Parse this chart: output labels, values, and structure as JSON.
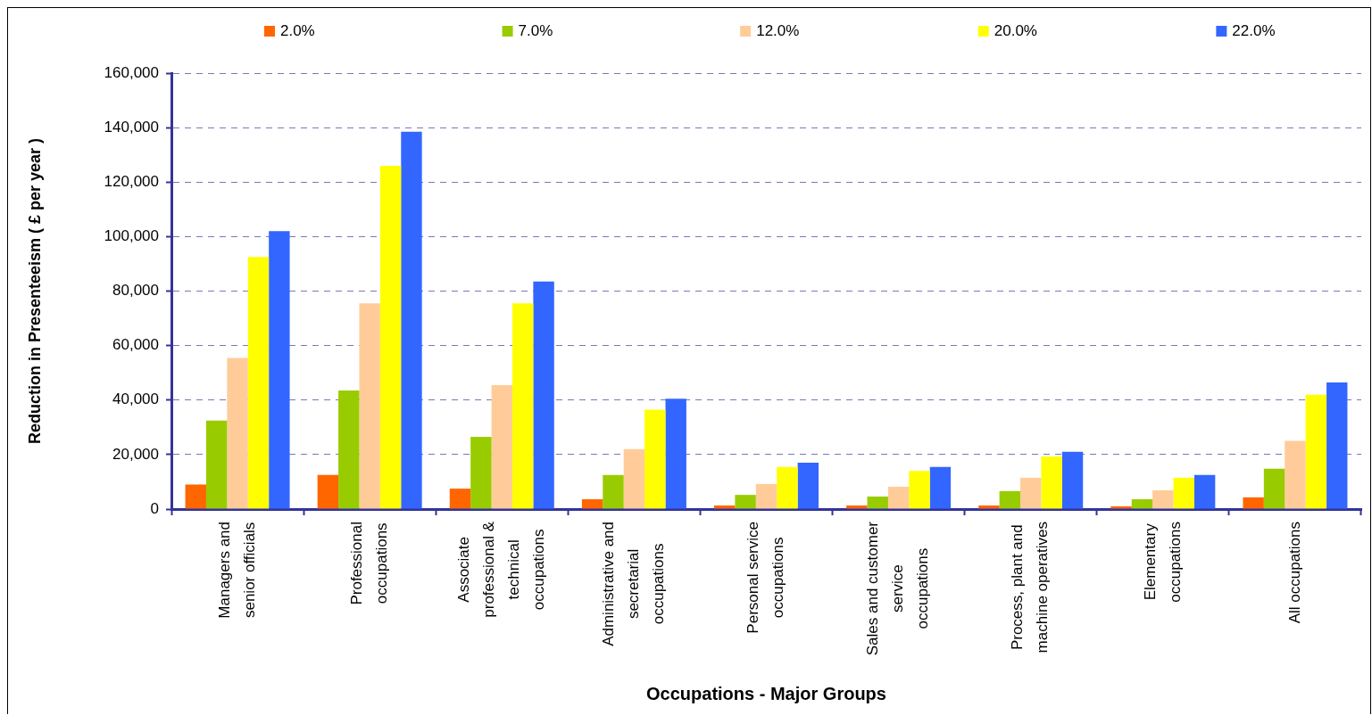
{
  "chart_data": {
    "type": "bar",
    "xlabel": "Occupations - Major Groups",
    "ylabel": "Reduction in Presenteeism ( £ per year )",
    "categories": [
      "Managers and\nsenior officials",
      "Professional\noccupations",
      "Associate\nprofessional &\ntechnical\noccupations",
      "Administrative and\nsecretarial\noccupations",
      "Personal service\noccupations",
      "Sales and customer\nservice\noccupations",
      "Process, plant and\nmachine operatives",
      "Elementary\noccupations",
      "All occupations"
    ],
    "series": [
      {
        "name": "2.0%",
        "color": "#ff6600",
        "values": [
          9000,
          12500,
          7500,
          3600,
          1300,
          1300,
          1300,
          1000,
          4300
        ]
      },
      {
        "name": "7.0%",
        "color": "#99cc00",
        "values": [
          32500,
          43500,
          26500,
          12500,
          5200,
          4600,
          6600,
          3600,
          14800
        ]
      },
      {
        "name": "12.0%",
        "color": "#ffcc99",
        "values": [
          55500,
          75500,
          45500,
          22000,
          9200,
          8200,
          11500,
          6900,
          25000
        ]
      },
      {
        "name": "20.0%",
        "color": "#ffff00",
        "values": [
          92500,
          126000,
          75500,
          36500,
          15500,
          14000,
          19300,
          11500,
          42000
        ]
      },
      {
        "name": "22.0%",
        "color": "#3366ff",
        "values": [
          102000,
          138500,
          83500,
          40500,
          17000,
          15500,
          21000,
          12500,
          46500
        ]
      }
    ],
    "ylim": [
      0,
      160000
    ],
    "yticks": [
      0,
      {
        "value": 20000,
        "label": "20,000"
      },
      {
        "value": 40000,
        "label": "40,000"
      },
      {
        "value": 60000,
        "label": "60,000"
      },
      {
        "value": 80000,
        "label": "80,000"
      },
      {
        "value": 100000,
        "label": "100,000"
      },
      {
        "value": 120000,
        "label": "120,000"
      },
      {
        "value": 140000,
        "label": "140,000"
      },
      {
        "value": 160000,
        "label": "160,000"
      }
    ],
    "grid": "y",
    "legend": "top"
  }
}
